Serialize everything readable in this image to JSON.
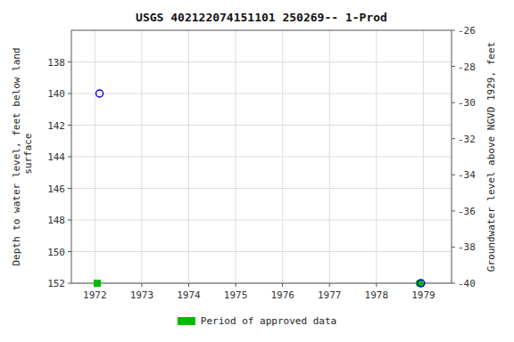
{
  "chart_data": {
    "type": "scatter",
    "title": "USGS 402122074151101 250269-- 1-Prod",
    "y_label": "Depth to water level, feet below land\n surface",
    "y2_label": "Groundwater level above NGVD 1929, feet",
    "xlim": [
      1971.5,
      1979.6
    ],
    "xticks": [
      1972,
      1973,
      1974,
      1975,
      1976,
      1977,
      1978,
      1979
    ],
    "ylim": [
      152,
      136
    ],
    "yticks": [
      138,
      140,
      142,
      144,
      146,
      148,
      150,
      152
    ],
    "y2lim": [
      -40,
      -26
    ],
    "y2ticks": [
      -26,
      -28,
      -30,
      -32,
      -34,
      -36,
      -38,
      -40
    ],
    "grid": true,
    "legend": "bottom",
    "series": [
      {
        "x": [
          1972.1
        ],
        "values": [
          140.0
        ],
        "color": "#0000cc",
        "marker": "open-circle"
      },
      {
        "name": "Period of approved data",
        "x": [
          1972.05
        ],
        "values": [
          152.0
        ],
        "color": "#00bb00",
        "marker": "square"
      },
      {
        "x": [
          1978.92
        ],
        "values": [
          152.0
        ],
        "color": "#00bb00",
        "marker": "circle"
      },
      {
        "x": [
          1978.95
        ],
        "values": [
          152.0
        ],
        "color": "#0000cc",
        "marker": "open-circle"
      }
    ]
  }
}
